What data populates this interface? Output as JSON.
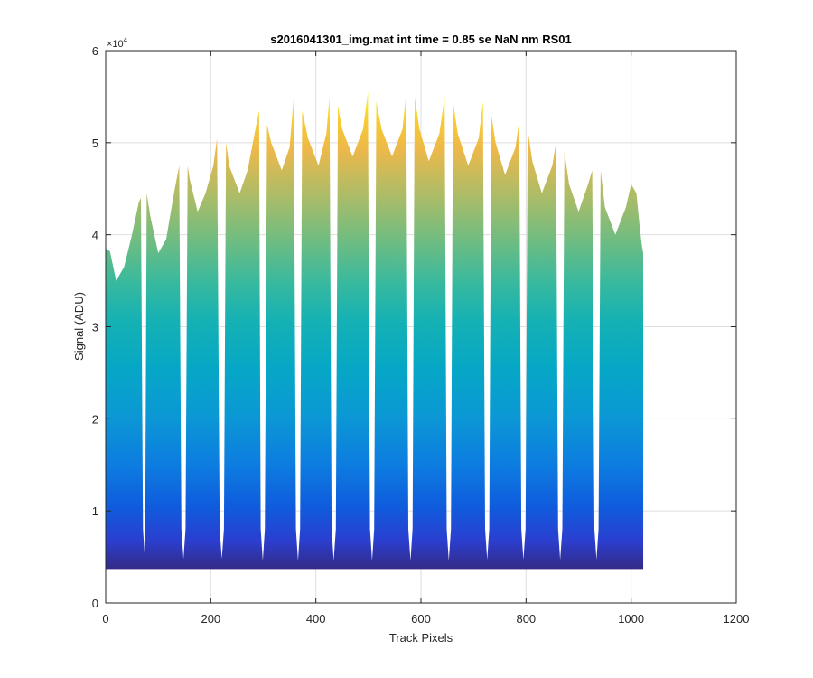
{
  "chart_data": {
    "type": "area",
    "title": "s2016041301_img.mat int time = 0.85 se  NaN nm RS01",
    "xlabel": "Track Pixels",
    "ylabel": "Signal (ADU)",
    "xlim": [
      0,
      1200
    ],
    "ylim": [
      0,
      60000
    ],
    "x_ticks": [
      0,
      200,
      400,
      600,
      800,
      1000,
      1200
    ],
    "x_tick_labels": [
      "0",
      "200",
      "400",
      "600",
      "800",
      "1000",
      "1200"
    ],
    "y_ticks": [
      0,
      10000,
      20000,
      30000,
      40000,
      50000,
      60000
    ],
    "y_tick_labels": [
      "0",
      "1",
      "2",
      "3",
      "4",
      "5",
      "6"
    ],
    "y_exponent_label": "×10",
    "y_exponent_power": "4",
    "grid": true,
    "baseline": 3700,
    "x_end": 1023,
    "colormap": "parula",
    "points": {
      "x": [
        0,
        8,
        20,
        35,
        50,
        63,
        67,
        71,
        75,
        78,
        85,
        100,
        115,
        130,
        140,
        144,
        148,
        152,
        156,
        160,
        175,
        190,
        205,
        212,
        217,
        221,
        225,
        229,
        235,
        255,
        270,
        285,
        292,
        295,
        299,
        303,
        307,
        315,
        335,
        350,
        358,
        362,
        366,
        370,
        374,
        385,
        405,
        420,
        426,
        430,
        434,
        438,
        442,
        450,
        470,
        490,
        499,
        503,
        507,
        511,
        515,
        525,
        545,
        565,
        572,
        576,
        580,
        584,
        588,
        597,
        615,
        635,
        645,
        649,
        653,
        657,
        661,
        670,
        690,
        710,
        718,
        722,
        726,
        730,
        734,
        742,
        760,
        780,
        787,
        791,
        795,
        799,
        803,
        812,
        830,
        850,
        857,
        861,
        865,
        869,
        873,
        882,
        900,
        918,
        926,
        930,
        934,
        938,
        942,
        950,
        970,
        990,
        1000,
        1010,
        1016,
        1020,
        1023
      ],
      "y": [
        38500,
        38200,
        35000,
        36500,
        40000,
        43500,
        44000,
        8000,
        4500,
        44500,
        42000,
        38000,
        39500,
        44500,
        47500,
        8000,
        4800,
        8000,
        47500,
        46000,
        42500,
        44500,
        47500,
        50500,
        8000,
        4800,
        8000,
        50000,
        47500,
        44500,
        47000,
        51500,
        53500,
        8000,
        4600,
        8000,
        52000,
        50000,
        47000,
        49500,
        55000,
        8000,
        4600,
        8000,
        53500,
        50500,
        47500,
        51000,
        55000,
        8000,
        4600,
        8000,
        54000,
        51500,
        48500,
        51500,
        55500,
        8000,
        4600,
        8000,
        54500,
        51500,
        48500,
        51500,
        55500,
        8000,
        4600,
        8000,
        55000,
        51500,
        48000,
        51000,
        55000,
        8000,
        4600,
        8000,
        54500,
        51000,
        47500,
        50500,
        54500,
        8000,
        4700,
        8000,
        53000,
        50000,
        46500,
        49500,
        52500,
        8000,
        4700,
        8000,
        51500,
        48000,
        44500,
        47500,
        50000,
        8000,
        4700,
        8000,
        49000,
        45500,
        42500,
        45500,
        47000,
        8000,
        4700,
        8000,
        47000,
        43000,
        40000,
        43000,
        45500,
        44500,
        41000,
        39000,
        38000
      ]
    }
  }
}
